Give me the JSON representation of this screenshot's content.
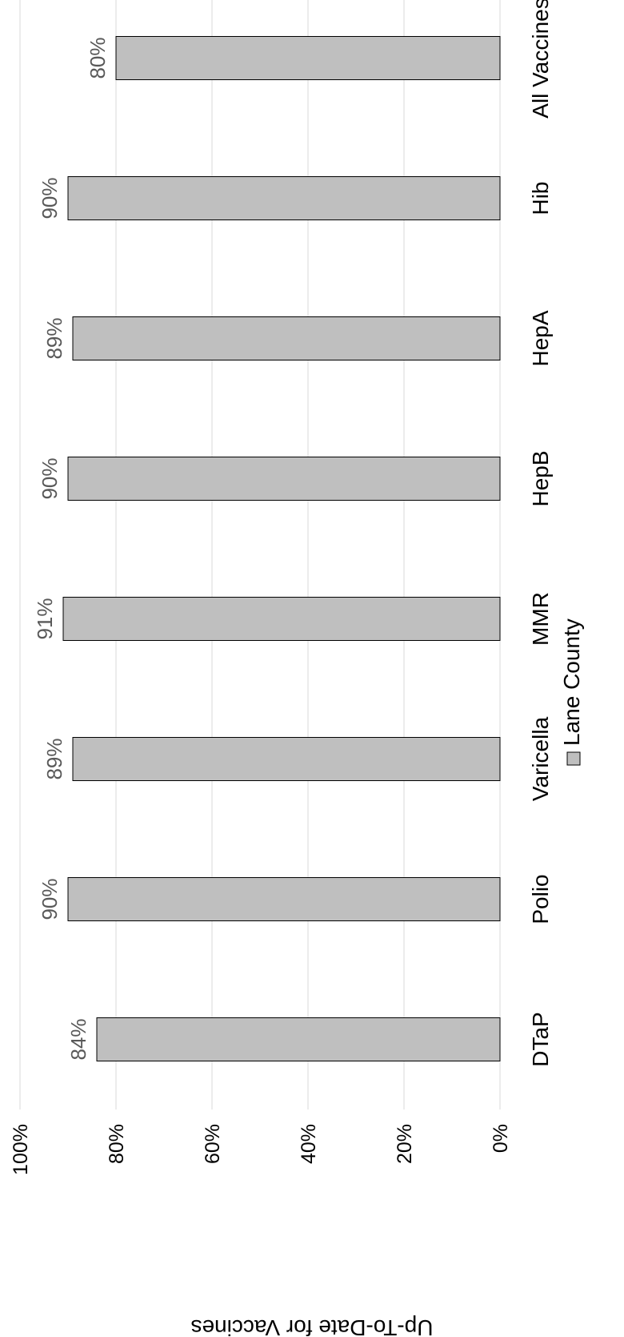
{
  "chart_data": {
    "type": "bar",
    "orientation": "rotated",
    "categories": [
      "DTaP",
      "Polio",
      "Varicella",
      "MMR",
      "HepB",
      "HepA",
      "Hib",
      "All Vaccines"
    ],
    "series": [
      {
        "name": "Lane County",
        "color": "#bfbfbf",
        "values": [
          84,
          90,
          89,
          91,
          90,
          89,
          90,
          80
        ],
        "data_labels": [
          "84%",
          "90%",
          "89%",
          "91%",
          "90%",
          "89%",
          "90%",
          "80%"
        ]
      }
    ],
    "ylabel": "Up-To-Date for Vaccines",
    "ylim": [
      0,
      100
    ],
    "yticks": [
      0,
      20,
      40,
      60,
      80,
      100
    ],
    "ytick_labels": [
      "0%",
      "20%",
      "40%",
      "60%",
      "80%",
      "100%"
    ],
    "grid": true,
    "legend": "bottom"
  }
}
